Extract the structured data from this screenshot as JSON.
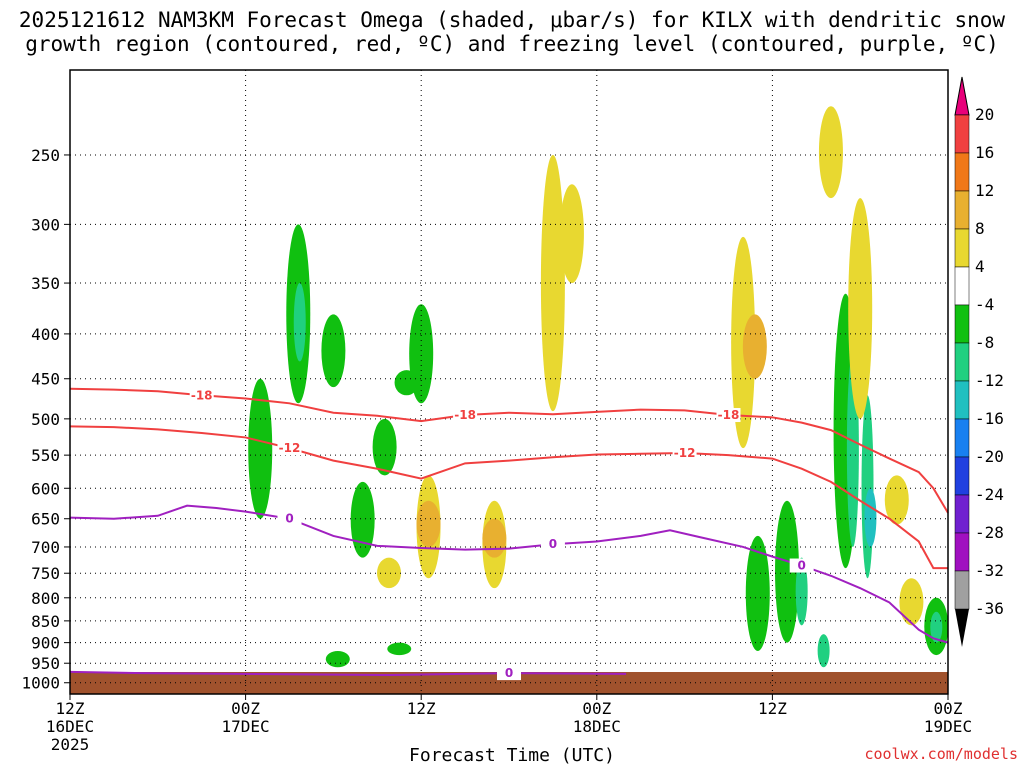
{
  "chart_data": {
    "type": "time-height cross section",
    "title_line1": "2025121612 NAM3KM Forecast Omega (shaded, μbar/s) for KILX with dendritic snow",
    "title_line2": "growth region (contoured, red, ºC) and freezing level (contoured, purple, ºC)",
    "xlabel": "Forecast Time (UTC)",
    "credit": "coolwx.com/models",
    "x_ticks": [
      {
        "hour": 0,
        "l1": "12Z",
        "l2": "16DEC",
        "l3": "2025"
      },
      {
        "hour": 12,
        "l1": "00Z",
        "l2": "17DEC",
        "l3": ""
      },
      {
        "hour": 24,
        "l1": "12Z",
        "l2": "",
        "l3": ""
      },
      {
        "hour": 36,
        "l1": "00Z",
        "l2": "18DEC",
        "l3": ""
      },
      {
        "hour": 48,
        "l1": "12Z",
        "l2": "",
        "l3": ""
      },
      {
        "hour": 60,
        "l1": "00Z",
        "l2": "19DEC",
        "l3": ""
      }
    ],
    "x_range_hours": [
      0,
      60
    ],
    "y_levels_mb": [
      250,
      300,
      350,
      400,
      450,
      500,
      550,
      600,
      650,
      700,
      750,
      800,
      850,
      900,
      950,
      1000
    ],
    "y_range_mb": [
      200,
      1030
    ],
    "y_scale": "log-pressure",
    "grid": "dotted",
    "colorbar": {
      "labels": [
        "20",
        "16",
        "12",
        "8",
        "4",
        "-4",
        "-8",
        "-12",
        "-16",
        "-20",
        "-24",
        "-28",
        "-32",
        "-36"
      ],
      "colors": [
        "#e8007a",
        "#f04040",
        "#f07818",
        "#e8b030",
        "#e8d830",
        "#ffffff",
        "#10c010",
        "#20d080",
        "#20c0c0",
        "#1880f0",
        "#2040e0",
        "#7020d0",
        "#a010c0",
        "#a0a0a0",
        "#000000"
      ]
    },
    "contours_minus18C": {
      "label": "-18",
      "color": "#f04040",
      "points": [
        [
          0,
          462
        ],
        [
          3,
          463
        ],
        [
          6,
          465
        ],
        [
          9,
          470
        ],
        [
          12,
          474
        ],
        [
          15,
          480
        ],
        [
          18,
          492
        ],
        [
          21,
          496
        ],
        [
          24,
          503
        ],
        [
          27,
          495
        ],
        [
          30,
          492
        ],
        [
          33,
          494
        ],
        [
          36,
          491
        ],
        [
          39,
          488
        ],
        [
          42,
          489
        ],
        [
          45,
          495
        ],
        [
          48,
          498
        ],
        [
          50,
          505
        ],
        [
          52,
          515
        ],
        [
          54,
          535
        ],
        [
          56,
          555
        ],
        [
          58,
          575
        ],
        [
          59,
          600
        ],
        [
          60,
          640
        ]
      ]
    },
    "contours_minus12C": {
      "label": "-12",
      "color": "#f04040",
      "points": [
        [
          0,
          510
        ],
        [
          3,
          511
        ],
        [
          6,
          514
        ],
        [
          9,
          519
        ],
        [
          12,
          525
        ],
        [
          15,
          540
        ],
        [
          18,
          558
        ],
        [
          21,
          570
        ],
        [
          24,
          585
        ],
        [
          27,
          562
        ],
        [
          30,
          558
        ],
        [
          33,
          553
        ],
        [
          36,
          549
        ],
        [
          39,
          548
        ],
        [
          42,
          547
        ],
        [
          45,
          550
        ],
        [
          48,
          555
        ],
        [
          50,
          570
        ],
        [
          52,
          590
        ],
        [
          54,
          620
        ],
        [
          56,
          650
        ],
        [
          58,
          690
        ],
        [
          59,
          740
        ],
        [
          60,
          740
        ]
      ]
    },
    "contours_0C": {
      "label": "0",
      "color": "#a020c0",
      "points": [
        [
          0,
          648
        ],
        [
          3,
          650
        ],
        [
          6,
          645
        ],
        [
          8,
          628
        ],
        [
          10,
          632
        ],
        [
          12,
          638
        ],
        [
          15,
          650
        ],
        [
          18,
          680
        ],
        [
          21,
          698
        ],
        [
          24,
          702
        ],
        [
          27,
          705
        ],
        [
          30,
          703
        ],
        [
          33,
          695
        ],
        [
          36,
          690
        ],
        [
          39,
          680
        ],
        [
          41,
          670
        ],
        [
          43,
          682
        ],
        [
          46,
          700
        ],
        [
          48,
          718
        ],
        [
          50,
          735
        ],
        [
          52,
          755
        ],
        [
          54,
          780
        ],
        [
          56,
          810
        ],
        [
          58,
          870
        ],
        [
          59,
          890
        ],
        [
          60,
          900
        ]
      ]
    },
    "contours_0C_surface": {
      "label": "0",
      "points": [
        [
          0,
          972
        ],
        [
          5,
          975
        ],
        [
          22,
          980
        ],
        [
          30,
          975
        ],
        [
          38,
          977
        ]
      ]
    },
    "omega_shading": [
      {
        "hour": 15.6,
        "p_top": 300,
        "p_bot": 480,
        "value": -8
      },
      {
        "hour": 15.7,
        "p_top": 350,
        "p_bot": 430,
        "value": -12
      },
      {
        "hour": 13.0,
        "p_top": 450,
        "p_bot": 650,
        "value": -8
      },
      {
        "hour": 18.0,
        "p_top": 380,
        "p_bot": 460,
        "value": -8
      },
      {
        "hour": 20.0,
        "p_top": 590,
        "p_bot": 720,
        "value": -8
      },
      {
        "hour": 21.5,
        "p_top": 500,
        "p_bot": 580,
        "value": -8
      },
      {
        "hour": 24.0,
        "p_top": 370,
        "p_bot": 480,
        "value": -8
      },
      {
        "hour": 23.0,
        "p_top": 440,
        "p_bot": 470,
        "value": -8
      },
      {
        "hour": 24.5,
        "p_top": 580,
        "p_bot": 760,
        "value": 4
      },
      {
        "hour": 24.5,
        "p_top": 620,
        "p_bot": 700,
        "value": 8
      },
      {
        "hour": 29.0,
        "p_top": 620,
        "p_bot": 780,
        "value": 4
      },
      {
        "hour": 29.0,
        "p_top": 650,
        "p_bot": 720,
        "value": 8
      },
      {
        "hour": 33.0,
        "p_top": 250,
        "p_bot": 490,
        "value": 4
      },
      {
        "hour": 34.3,
        "p_top": 270,
        "p_bot": 350,
        "value": 4
      },
      {
        "hour": 46.0,
        "p_top": 310,
        "p_bot": 540,
        "value": 4
      },
      {
        "hour": 46.8,
        "p_top": 380,
        "p_bot": 450,
        "value": 8
      },
      {
        "hour": 52.0,
        "p_top": 220,
        "p_bot": 280,
        "value": 4
      },
      {
        "hour": 53.0,
        "p_top": 360,
        "p_bot": 740,
        "value": -8
      },
      {
        "hour": 53.5,
        "p_top": 420,
        "p_bot": 700,
        "value": -12
      },
      {
        "hour": 54.5,
        "p_top": 470,
        "p_bot": 760,
        "value": -12
      },
      {
        "hour": 54.7,
        "p_top": 600,
        "p_bot": 700,
        "value": -16
      },
      {
        "hour": 54.0,
        "p_top": 280,
        "p_bot": 500,
        "value": 4
      },
      {
        "hour": 56.5,
        "p_top": 580,
        "p_bot": 660,
        "value": 4
      },
      {
        "hour": 47.0,
        "p_top": 680,
        "p_bot": 920,
        "value": -8
      },
      {
        "hour": 49.0,
        "p_top": 620,
        "p_bot": 900,
        "value": -8
      },
      {
        "hour": 50.0,
        "p_top": 720,
        "p_bot": 860,
        "value": -12
      },
      {
        "hour": 51.5,
        "p_top": 880,
        "p_bot": 960,
        "value": -12
      },
      {
        "hour": 59.2,
        "p_top": 800,
        "p_bot": 930,
        "value": -8
      },
      {
        "hour": 59.2,
        "p_top": 830,
        "p_bot": 900,
        "value": -12
      },
      {
        "hour": 57.5,
        "p_top": 760,
        "p_bot": 860,
        "value": 4
      },
      {
        "hour": 18.3,
        "p_top": 920,
        "p_bot": 960,
        "value": -8
      },
      {
        "hour": 21.8,
        "p_top": 720,
        "p_bot": 780,
        "value": 4
      },
      {
        "hour": 22.5,
        "p_top": 900,
        "p_bot": 930,
        "value": -8
      }
    ]
  }
}
